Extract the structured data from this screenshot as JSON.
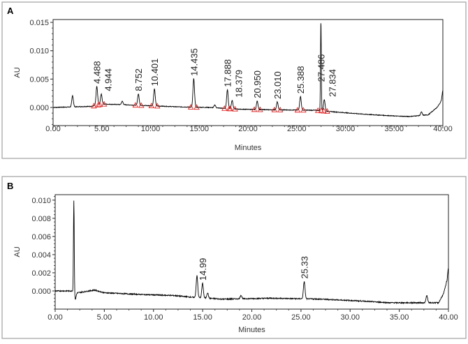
{
  "chart_data": [
    {
      "panel_label": "A",
      "type": "line",
      "xlabel": "Minutes",
      "ylabel": "AU",
      "xlim": [
        0,
        40
      ],
      "ylim": [
        -0.0032,
        0.0155
      ],
      "x_ticks": [
        "0.00",
        "5.00",
        "10.00",
        "15.00",
        "20.00",
        "25.00",
        "30.00",
        "35.00",
        "40.00"
      ],
      "y_ticks": [
        "0.000",
        "0.005",
        "0.010",
        "0.015"
      ],
      "grid": false,
      "line_color": "#000000",
      "marker_color": "#e02020",
      "baseline": [
        [
          0,
          0
        ],
        [
          4,
          0.0002
        ],
        [
          5,
          0.0006
        ],
        [
          7,
          0.0005
        ],
        [
          10,
          0.0003
        ],
        [
          13,
          0.0001
        ],
        [
          16,
          0.0
        ],
        [
          19,
          -0.0003
        ],
        [
          22,
          -0.0004
        ],
        [
          27,
          -0.0005
        ],
        [
          29,
          -0.0008
        ],
        [
          32,
          -0.0012
        ],
        [
          35,
          -0.0015
        ],
        [
          36.5,
          -0.0016
        ],
        [
          38.5,
          -0.0013
        ],
        [
          39.4,
          0.0
        ],
        [
          39.8,
          0.001
        ],
        [
          40,
          0.001
        ]
      ],
      "peaks": [
        {
          "rt": 2.0,
          "height": 0.002
        },
        {
          "rt": 4.488,
          "height": 0.0033,
          "label": "4.488"
        },
        {
          "rt": 4.944,
          "height": 0.0018,
          "label": "4.944"
        },
        {
          "rt": 7.1,
          "height": 0.0006
        },
        {
          "rt": 8.752,
          "height": 0.002,
          "label": "8.752"
        },
        {
          "rt": 10.401,
          "height": 0.003,
          "label": "10.401"
        },
        {
          "rt": 14.435,
          "height": 0.005,
          "label": "14.435"
        },
        {
          "rt": 16.6,
          "height": 0.0005
        },
        {
          "rt": 17.888,
          "height": 0.0033,
          "label": "17.888"
        },
        {
          "rt": 18.379,
          "height": 0.0015,
          "label": "18.379"
        },
        {
          "rt": 20.95,
          "height": 0.0015,
          "label": "20.950"
        },
        {
          "rt": 23.01,
          "height": 0.0014,
          "label": "23.010"
        },
        {
          "rt": 25.388,
          "height": 0.0024,
          "label": "25.388"
        },
        {
          "rt": 27.486,
          "height": 0.016,
          "label": "27.486"
        },
        {
          "rt": 27.834,
          "height": 0.002,
          "label": "27.834"
        },
        {
          "rt": 37.8,
          "height": 0.0006
        },
        {
          "rt": 40.0,
          "height": 0.002
        }
      ]
    },
    {
      "panel_label": "B",
      "type": "line",
      "xlabel": "Minutes",
      "ylabel": "AU",
      "xlim": [
        0,
        40
      ],
      "ylim": [
        -0.002,
        0.0106
      ],
      "x_ticks": [
        "0.00",
        "5.00",
        "10.00",
        "15.00",
        "20.00",
        "25.00",
        "30.00",
        "35.00",
        "40.00"
      ],
      "y_ticks": [
        "0.000",
        "0.002",
        "0.004",
        "0.006",
        "0.008",
        "0.010"
      ],
      "grid": false,
      "line_color": "#000000",
      "baseline": [
        [
          0,
          0
        ],
        [
          1.8,
          0
        ],
        [
          2.3,
          -0.0002
        ],
        [
          4,
          0.0001
        ],
        [
          5,
          -0.0002
        ],
        [
          9,
          -0.0004
        ],
        [
          12,
          -0.0005
        ],
        [
          14,
          -0.0007
        ],
        [
          17,
          -0.0009
        ],
        [
          22,
          -0.0008
        ],
        [
          27,
          -0.0009
        ],
        [
          31,
          -0.0011
        ],
        [
          34,
          -0.0013
        ],
        [
          36.5,
          -0.0013
        ],
        [
          39,
          -0.0013
        ],
        [
          39.5,
          -0.0003
        ],
        [
          39.8,
          0.0009
        ],
        [
          40,
          0.0005
        ]
      ],
      "peaks": [
        {
          "rt": 1.9,
          "height": 0.0101
        },
        {
          "rt": 2.05,
          "height": -0.0008
        },
        {
          "rt": 14.42,
          "height": 0.0024
        },
        {
          "rt": 14.99,
          "height": 0.0016,
          "label": "14.99"
        },
        {
          "rt": 15.5,
          "height": 0.0006
        },
        {
          "rt": 18.9,
          "height": 0.0004
        },
        {
          "rt": 25.33,
          "height": 0.0019,
          "label": "25.33"
        },
        {
          "rt": 37.8,
          "height": 0.0008
        },
        {
          "rt": 40.0,
          "height": 0.002
        }
      ]
    }
  ]
}
